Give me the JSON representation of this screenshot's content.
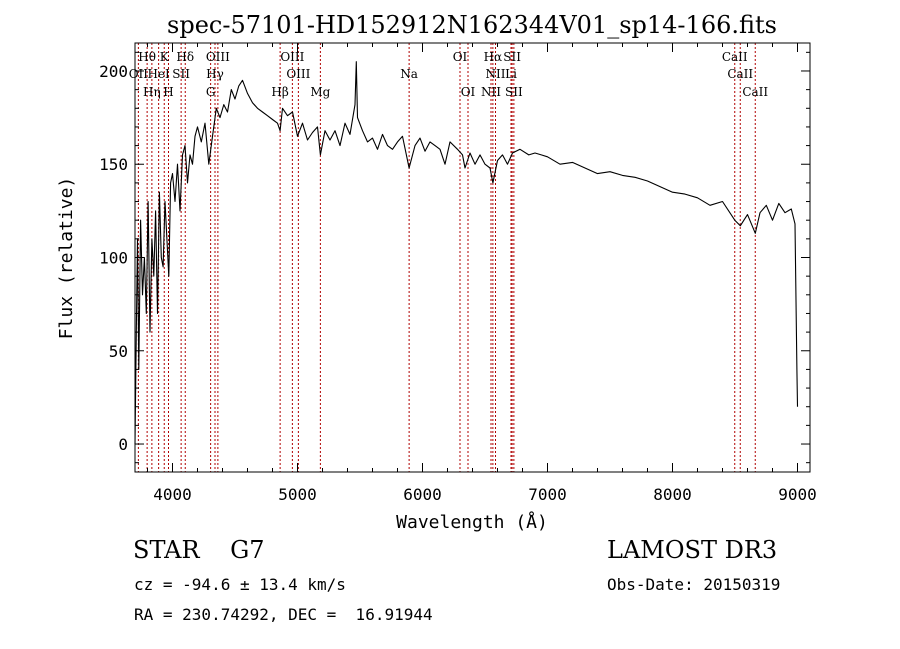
{
  "chart_data": {
    "type": "line",
    "title": "spec-57101-HD152912N162344V01_sp14-166.fits",
    "xlabel": "Wavelength (Å)",
    "ylabel": "Flux (relative)",
    "xlim": [
      3700,
      9100
    ],
    "ylim": [
      -15,
      215
    ],
    "xticks": [
      4000,
      5000,
      6000,
      7000,
      8000,
      9000
    ],
    "yticks": [
      0,
      50,
      100,
      150,
      200
    ],
    "grid": false,
    "series": [
      {
        "name": "spectrum",
        "x": [
          3700,
          3710,
          3720,
          3730,
          3745,
          3760,
          3775,
          3790,
          3805,
          3820,
          3835,
          3850,
          3865,
          3880,
          3895,
          3910,
          3925,
          3940,
          3955,
          3970,
          3985,
          4000,
          4020,
          4040,
          4060,
          4080,
          4100,
          4120,
          4140,
          4160,
          4180,
          4200,
          4230,
          4260,
          4290,
          4320,
          4350,
          4380,
          4410,
          4440,
          4470,
          4500,
          4530,
          4560,
          4600,
          4640,
          4680,
          4720,
          4760,
          4800,
          4840,
          4861,
          4880,
          4920,
          4960,
          5000,
          5040,
          5080,
          5120,
          5160,
          5183,
          5220,
          5260,
          5300,
          5340,
          5380,
          5420,
          5460,
          5470,
          5480,
          5520,
          5560,
          5600,
          5640,
          5680,
          5720,
          5760,
          5800,
          5840,
          5893,
          5940,
          5980,
          6020,
          6060,
          6100,
          6140,
          6180,
          6220,
          6280,
          6320,
          6340,
          6380,
          6420,
          6460,
          6500,
          6540,
          6563,
          6600,
          6640,
          6680,
          6720,
          6780,
          6850,
          6900,
          6950,
          7000,
          7100,
          7200,
          7300,
          7400,
          7500,
          7600,
          7700,
          7800,
          7900,
          8000,
          8100,
          8200,
          8300,
          8400,
          8498,
          8542,
          8600,
          8662,
          8700,
          8750,
          8800,
          8850,
          8900,
          8950,
          8980,
          8995,
          9000
        ],
        "y": [
          0,
          60,
          110,
          40,
          120,
          80,
          100,
          70,
          130,
          60,
          110,
          90,
          125,
          70,
          135,
          100,
          95,
          130,
          110,
          90,
          140,
          145,
          130,
          150,
          125,
          155,
          160,
          140,
          155,
          150,
          165,
          170,
          162,
          172,
          150,
          165,
          180,
          175,
          182,
          178,
          190,
          185,
          192,
          195,
          188,
          183,
          180,
          178,
          176,
          174,
          172,
          168,
          180,
          176,
          178,
          165,
          172,
          163,
          167,
          170,
          155,
          168,
          163,
          168,
          160,
          172,
          166,
          182,
          205,
          175,
          168,
          162,
          164,
          158,
          166,
          160,
          158,
          162,
          165,
          148,
          160,
          164,
          157,
          162,
          160,
          158,
          150,
          162,
          158,
          155,
          148,
          156,
          150,
          155,
          150,
          148,
          140,
          152,
          155,
          150,
          156,
          158,
          155,
          156,
          155,
          154,
          150,
          151,
          148,
          145,
          146,
          144,
          143,
          141,
          138,
          135,
          134,
          132,
          128,
          130,
          120,
          117,
          123,
          113,
          124,
          128,
          120,
          129,
          124,
          126,
          118,
          40,
          20
        ]
      }
    ],
    "line_labels": [
      {
        "text": "Hθ",
        "x": 3797,
        "row": 1
      },
      {
        "text": "K",
        "x": 3934,
        "row": 1
      },
      {
        "text": "Hδ",
        "x": 4102,
        "row": 1
      },
      {
        "text": "OIII",
        "x": 4363,
        "row": 1
      },
      {
        "text": "OIII",
        "x": 4959,
        "row": 1
      },
      {
        "text": "OI",
        "x": 6300,
        "row": 1
      },
      {
        "text": "Hα",
        "x": 6563,
        "row": 1
      },
      {
        "text": "SII",
        "x": 6717,
        "row": 1
      },
      {
        "text": "CaII",
        "x": 8498,
        "row": 1
      },
      {
        "text": "OII",
        "x": 3727,
        "row": 2
      },
      {
        "text": "HeI",
        "x": 3889,
        "row": 2
      },
      {
        "text": "SII",
        "x": 4069,
        "row": 2
      },
      {
        "text": "Hγ",
        "x": 4340,
        "row": 2
      },
      {
        "text": "OIII",
        "x": 5007,
        "row": 2
      },
      {
        "text": "Na",
        "x": 5893,
        "row": 2
      },
      {
        "text": "NII",
        "x": 6584,
        "row": 2
      },
      {
        "text": "Li",
        "x": 6708,
        "row": 2
      },
      {
        "text": "CaII",
        "x": 8542,
        "row": 2
      },
      {
        "text": "Hη",
        "x": 3835,
        "row": 3
      },
      {
        "text": "H",
        "x": 3968,
        "row": 3
      },
      {
        "text": "G",
        "x": 4305,
        "row": 3
      },
      {
        "text": "Hβ",
        "x": 4861,
        "row": 3
      },
      {
        "text": "Mg",
        "x": 5183,
        "row": 3
      },
      {
        "text": "OI",
        "x": 6364,
        "row": 3
      },
      {
        "text": "NII",
        "x": 6548,
        "row": 3
      },
      {
        "text": "SII",
        "x": 6731,
        "row": 3
      },
      {
        "text": "CaII",
        "x": 8662,
        "row": 3
      }
    ],
    "line_positions": [
      3727,
      3797,
      3835,
      3889,
      3934,
      3968,
      4069,
      4102,
      4305,
      4340,
      4363,
      4861,
      4959,
      5007,
      5183,
      5893,
      6300,
      6364,
      6548,
      6563,
      6584,
      6708,
      6717,
      6731,
      8498,
      8542,
      8662
    ]
  },
  "info": {
    "object_type": "STAR",
    "spectral_class": "G7",
    "survey": "LAMOST DR3",
    "velocity": "cz = -94.6 ± 13.4 km/s",
    "obs_date": "Obs-Date: 20150319",
    "coordinates": "RA = 230.74292, DEC =  16.91944"
  },
  "colors": {
    "axes": "#000000",
    "spectrum": "#000000",
    "line_marker": "#b00000"
  }
}
